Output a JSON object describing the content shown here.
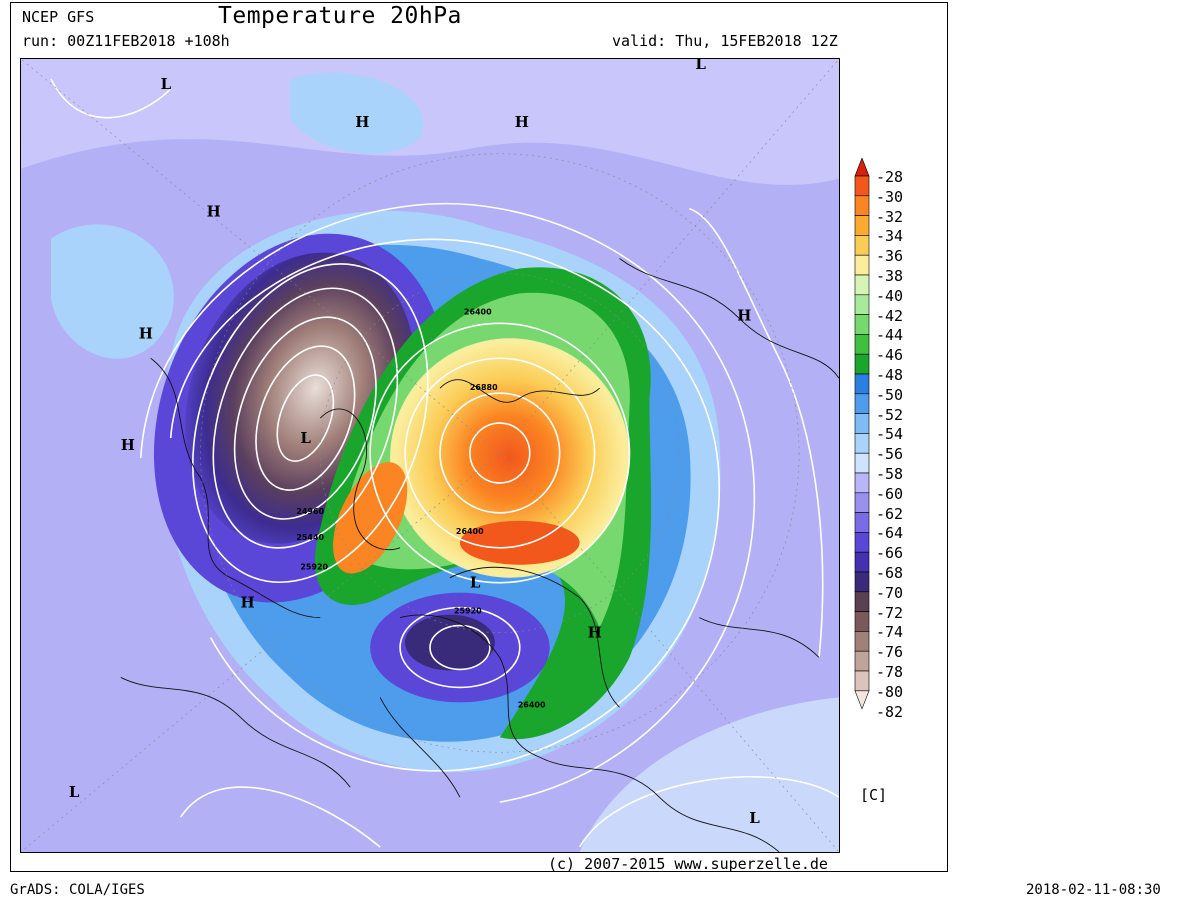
{
  "header": {
    "model": "NCEP GFS",
    "title": "Temperature 20hPa",
    "run": "run: 00Z11FEB2018 +108h",
    "valid": "valid: Thu, 15FEB2018 12Z"
  },
  "footer": {
    "copyright": "(c) 2007-2015 www.superzelle.de",
    "software": "GrADS: COLA/IGES",
    "timestamp": "2018-02-11-08:30"
  },
  "colorbar": {
    "unit": "[C]",
    "levels": [
      "-28",
      "-30",
      "-32",
      "-34",
      "-36",
      "-38",
      "-40",
      "-42",
      "-44",
      "-46",
      "-48",
      "-50",
      "-52",
      "-54",
      "-56",
      "-58",
      "-60",
      "-62",
      "-64",
      "-66",
      "-68",
      "-70",
      "-72",
      "-74",
      "-76",
      "-78",
      "-80",
      "-82"
    ],
    "colors": [
      "#d9200b",
      "#f2571c",
      "#fb8523",
      "#f9aa2f",
      "#fbcc55",
      "#fbed9c",
      "#d6f5b4",
      "#a8ea9c",
      "#76d86f",
      "#3fc13f",
      "#1aa52d",
      "#2a7fe0",
      "#4e9ded",
      "#7fbbf5",
      "#a9d3fb",
      "#cfe2ff",
      "#b9b6f7",
      "#9a91ef",
      "#7a6ce6",
      "#5a47d8",
      "#4430b0",
      "#3a2a7a",
      "#5a4050",
      "#7a5a58",
      "#a08078",
      "#c0a49a",
      "#dcc4bb",
      "#f3e6e1"
    ]
  },
  "map_labels": {
    "pressure_centers": [
      "L",
      "H",
      "H",
      "H",
      "H",
      "H",
      "L",
      "H",
      "H",
      "L",
      "H",
      "L",
      "L",
      "L"
    ],
    "contours": [
      "26400",
      "26880",
      "24960",
      "25440",
      "25920",
      "26400",
      "25920",
      "26400"
    ]
  }
}
